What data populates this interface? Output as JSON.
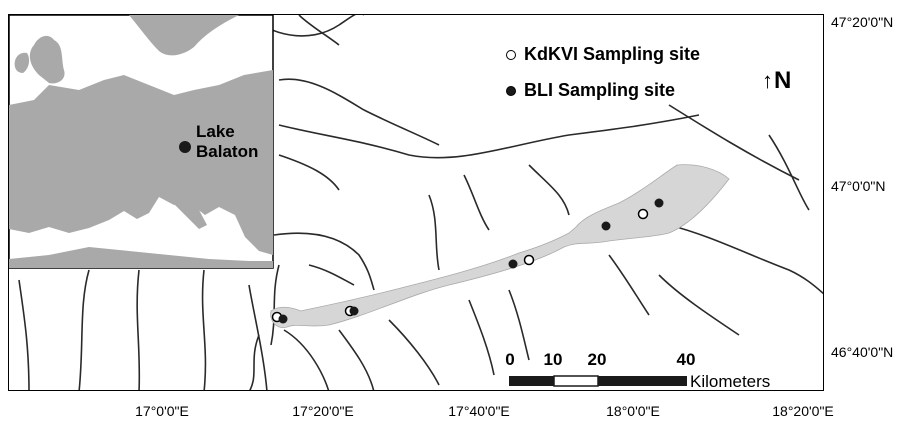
{
  "legend": {
    "kdkvi_label": "KdKVI Sampling site",
    "bli_label": "BLI Sampling site"
  },
  "north_arrow": {
    "glyph": "↑",
    "label": "N"
  },
  "inset": {
    "label_line1": "Lake",
    "label_line2": "Balaton"
  },
  "latitude_labels": [
    "47°20'0\"N",
    "47°0'0\"N",
    "46°40'0\"N"
  ],
  "longitude_labels": [
    "17°0'0\"E",
    "17°20'0\"E",
    "17°40'0\"E",
    "18°0'0\"E",
    "18°20'0\"E"
  ],
  "scale_bar": {
    "ticks": [
      "0",
      "10",
      "20",
      "40"
    ],
    "unit": "Kilometers"
  },
  "colors": {
    "lake": "#d6d6d6",
    "land_inset": "#a9a9a9",
    "river": "#2a2a2a",
    "site_bli": "#1a1a1a",
    "site_kdkvi": "#ffffff"
  }
}
